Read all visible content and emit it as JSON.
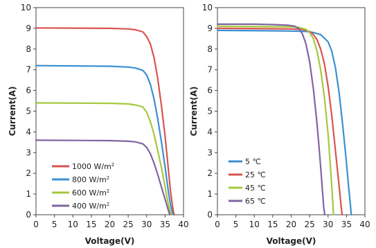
{
  "chart_data": [
    {
      "type": "line",
      "xlabel": "Voltage(V)",
      "ylabel": "Current(A)",
      "xlim": [
        0,
        40
      ],
      "ylim": [
        0,
        10
      ],
      "x_ticks": [
        "0",
        "5",
        "10",
        "15",
        "20",
        "25",
        "30",
        "35",
        "40"
      ],
      "y_ticks": [
        "0",
        "1",
        "2",
        "3",
        "4",
        "5",
        "6",
        "7",
        "8",
        "9",
        "10"
      ],
      "grid": false,
      "legend_position": "bottom-left",
      "series": [
        {
          "name": "1000 W/m",
          "unit_exponent": "2",
          "color": "#d9534f",
          "x": [
            0,
            20,
            25,
            27,
            29,
            30,
            31,
            32,
            33,
            34,
            35,
            36,
            36.5,
            37,
            37.3,
            37.5
          ],
          "y": [
            9.02,
            9.0,
            8.97,
            8.93,
            8.83,
            8.6,
            8.25,
            7.6,
            6.6,
            5.3,
            3.8,
            2.0,
            1.1,
            0.45,
            0.12,
            0
          ]
        },
        {
          "name": "800 W/m",
          "unit_exponent": "2",
          "color": "#3b8fd0",
          "x": [
            0,
            20,
            25,
            27,
            29,
            30,
            31,
            32,
            33,
            34,
            35,
            36,
            36.5,
            37,
            37.2
          ],
          "y": [
            7.2,
            7.17,
            7.13,
            7.08,
            6.97,
            6.75,
            6.3,
            5.6,
            4.65,
            3.55,
            2.3,
            1.0,
            0.45,
            0.1,
            0
          ]
        },
        {
          "name": "600 W/m",
          "unit_exponent": "2",
          "color": "#a6c83c",
          "x": [
            0,
            20,
            25,
            27,
            29,
            30,
            31,
            32,
            33,
            34,
            35,
            35.5,
            36,
            36.5,
            36.8
          ],
          "y": [
            5.4,
            5.38,
            5.35,
            5.3,
            5.2,
            4.95,
            4.5,
            3.9,
            3.1,
            2.3,
            1.35,
            0.85,
            0.4,
            0.1,
            0
          ]
        },
        {
          "name": "400 W/m",
          "unit_exponent": "2",
          "color": "#8064a2",
          "x": [
            0,
            20,
            25,
            27,
            29,
            30,
            31,
            32,
            33,
            34,
            35,
            35.5,
            36,
            36.3
          ],
          "y": [
            3.6,
            3.58,
            3.55,
            3.52,
            3.42,
            3.25,
            2.95,
            2.5,
            1.95,
            1.35,
            0.75,
            0.45,
            0.15,
            0
          ]
        }
      ]
    },
    {
      "type": "line",
      "xlabel": "Voltage(V)",
      "ylabel": "Current(A)",
      "xlim": [
        0,
        40
      ],
      "ylim": [
        0,
        10
      ],
      "x_ticks": [
        "0",
        "5",
        "10",
        "15",
        "20",
        "25",
        "30",
        "35",
        "40"
      ],
      "y_ticks": [
        "0",
        "1",
        "2",
        "3",
        "4",
        "5",
        "6",
        "7",
        "8",
        "9",
        "10"
      ],
      "grid": false,
      "legend_position": "bottom-left",
      "series": [
        {
          "name": "5 ℃",
          "color": "#3b8fd0",
          "x": [
            0,
            15,
            20,
            24,
            26,
            28,
            30,
            31,
            32,
            33,
            34,
            35,
            35.5,
            36,
            36.3
          ],
          "y": [
            8.9,
            8.88,
            8.87,
            8.85,
            8.8,
            8.7,
            8.35,
            7.9,
            7.1,
            5.9,
            4.3,
            2.5,
            1.5,
            0.6,
            0
          ]
        },
        {
          "name": "25 ℃",
          "color": "#d9534f",
          "x": [
            0,
            15,
            20,
            23,
            25,
            26,
            27,
            28,
            29,
            30,
            31,
            32,
            33,
            33.5,
            33.8
          ],
          "y": [
            9.0,
            8.98,
            8.97,
            8.95,
            8.85,
            8.7,
            8.45,
            8.0,
            7.3,
            6.2,
            4.8,
            3.1,
            1.4,
            0.5,
            0
          ]
        },
        {
          "name": "45 ℃",
          "color": "#a6c83c",
          "x": [
            0,
            15,
            20,
            22,
            24,
            25,
            26,
            27,
            28,
            29,
            30,
            30.5,
            31,
            31.3,
            31.5
          ],
          "y": [
            9.1,
            9.08,
            9.07,
            9.05,
            8.95,
            8.8,
            8.5,
            7.9,
            7.0,
            5.7,
            3.9,
            2.7,
            1.4,
            0.5,
            0
          ]
        },
        {
          "name": "65 ℃",
          "color": "#8064a2",
          "x": [
            0,
            10,
            15,
            19,
            21,
            22,
            23,
            24,
            25,
            26,
            27,
            27.5,
            28,
            28.5,
            28.8,
            29.1
          ],
          "y": [
            9.2,
            9.2,
            9.18,
            9.15,
            9.1,
            9.0,
            8.75,
            8.25,
            7.4,
            6.1,
            4.4,
            3.4,
            2.3,
            1.1,
            0.4,
            0
          ]
        }
      ]
    }
  ]
}
